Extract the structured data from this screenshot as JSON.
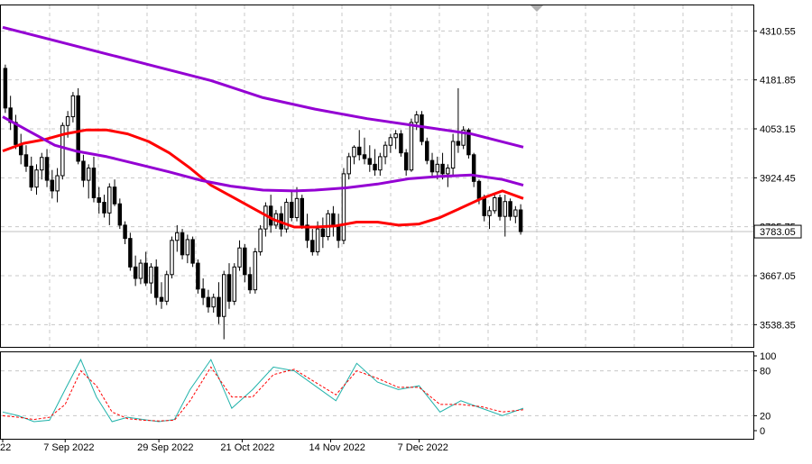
{
  "chart_data": [
    {
      "type": "candlestick",
      "panel": "price",
      "ylim": [
        3480,
        4380
      ],
      "y_ticks": [
        "4310.55",
        "4181.85",
        "4053.15",
        "3924.45",
        "3795.75",
        "3667.05",
        "3538.35"
      ],
      "current_price_label": "3783.05",
      "current_price": 3783.05,
      "grid": "dashed",
      "up_color": "#ffffff",
      "down_color": "#000000",
      "candles": [
        [
          4212,
          4222,
          4095,
          4108
        ],
        [
          4108,
          4140,
          4050,
          4070
        ],
        [
          4070,
          4090,
          4000,
          4012
        ],
        [
          4012,
          4040,
          3960,
          3985
        ],
        [
          3985,
          4010,
          3940,
          3955
        ],
        [
          3955,
          3980,
          3890,
          3900
        ],
        [
          3900,
          3960,
          3880,
          3945
        ],
        [
          3945,
          3990,
          3920,
          3978
        ],
        [
          3978,
          4000,
          3900,
          3918
        ],
        [
          3918,
          3945,
          3870,
          3890
        ],
        [
          3890,
          3950,
          3860,
          3930
        ],
        [
          3930,
          4070,
          3920,
          4062
        ],
        [
          4062,
          4100,
          4030,
          4085
        ],
        [
          4085,
          4150,
          4070,
          4140
        ],
        [
          4140,
          4160,
          3960,
          3968
        ],
        [
          3968,
          3985,
          3900,
          3918
        ],
        [
          3918,
          3960,
          3870,
          3950
        ],
        [
          3950,
          3980,
          3860,
          3872
        ],
        [
          3872,
          3900,
          3830,
          3860
        ],
        [
          3860,
          3880,
          3820,
          3832
        ],
        [
          3832,
          3910,
          3800,
          3900
        ],
        [
          3900,
          3920,
          3850,
          3856
        ],
        [
          3856,
          3870,
          3790,
          3800
        ],
        [
          3800,
          3810,
          3750,
          3765
        ],
        [
          3765,
          3780,
          3680,
          3690
        ],
        [
          3690,
          3720,
          3640,
          3660
        ],
        [
          3660,
          3710,
          3645,
          3700
        ],
        [
          3700,
          3730,
          3640,
          3648
        ],
        [
          3648,
          3700,
          3620,
          3690
        ],
        [
          3690,
          3710,
          3590,
          3610
        ],
        [
          3610,
          3650,
          3580,
          3600
        ],
        [
          3600,
          3680,
          3590,
          3670
        ],
        [
          3670,
          3770,
          3660,
          3760
        ],
        [
          3760,
          3800,
          3730,
          3780
        ],
        [
          3780,
          3790,
          3710,
          3722
        ],
        [
          3722,
          3775,
          3700,
          3762
        ],
        [
          3762,
          3770,
          3690,
          3700
        ],
        [
          3700,
          3710,
          3620,
          3632
        ],
        [
          3632,
          3660,
          3590,
          3610
        ],
        [
          3610,
          3630,
          3570,
          3585
        ],
        [
          3585,
          3620,
          3570,
          3610
        ],
        [
          3610,
          3650,
          3540,
          3560
        ],
        [
          3560,
          3680,
          3500,
          3670
        ],
        [
          3670,
          3700,
          3580,
          3600
        ],
        [
          3600,
          3700,
          3590,
          3690
        ],
        [
          3690,
          3760,
          3680,
          3740
        ],
        [
          3740,
          3750,
          3650,
          3670
        ],
        [
          3670,
          3690,
          3620,
          3630
        ],
        [
          3630,
          3740,
          3620,
          3730
        ],
        [
          3730,
          3800,
          3720,
          3790
        ],
        [
          3790,
          3860,
          3770,
          3850
        ],
        [
          3850,
          3880,
          3780,
          3800
        ],
        [
          3800,
          3840,
          3790,
          3830
        ],
        [
          3830,
          3850,
          3770,
          3790
        ],
        [
          3790,
          3870,
          3780,
          3860
        ],
        [
          3860,
          3890,
          3810,
          3820
        ],
        [
          3820,
          3900,
          3810,
          3870
        ],
        [
          3870,
          3880,
          3790,
          3800
        ],
        [
          3800,
          3830,
          3740,
          3760
        ],
        [
          3760,
          3790,
          3720,
          3730
        ],
        [
          3730,
          3810,
          3720,
          3790
        ],
        [
          3790,
          3820,
          3740,
          3770
        ],
        [
          3770,
          3840,
          3760,
          3830
        ],
        [
          3830,
          3850,
          3770,
          3800
        ],
        [
          3800,
          3830,
          3740,
          3760
        ],
        [
          3760,
          3950,
          3750,
          3935
        ],
        [
          3935,
          3990,
          3920,
          3980
        ],
        [
          3980,
          4010,
          3960,
          4005
        ],
        [
          4005,
          4050,
          3970,
          3985
        ],
        [
          3985,
          4030,
          3960,
          3975
        ],
        [
          3975,
          4010,
          3940,
          3960
        ],
        [
          3960,
          4000,
          3930,
          3945
        ],
        [
          3945,
          3990,
          3930,
          3980
        ],
        [
          3980,
          4020,
          3960,
          4010
        ],
        [
          4010,
          4040,
          3990,
          4030
        ],
        [
          4030,
          4050,
          4000,
          4040
        ],
        [
          4040,
          4050,
          3980,
          3990
        ],
        [
          3990,
          4000,
          3930,
          3945
        ],
        [
          3945,
          4080,
          3940,
          4070
        ],
        [
          4070,
          4100,
          4050,
          4090
        ],
        [
          4090,
          4100,
          4010,
          4020
        ],
        [
          4020,
          4030,
          3960,
          3970
        ],
        [
          3970,
          3990,
          3930,
          3940
        ],
        [
          3940,
          3980,
          3920,
          3960
        ],
        [
          3960,
          3990,
          3920,
          3935
        ],
        [
          3935,
          3960,
          3900,
          3950
        ],
        [
          3950,
          4040,
          3930,
          4020
        ],
        [
          4020,
          4160,
          3990,
          4010
        ],
        [
          4010,
          4060,
          4000,
          4050
        ],
        [
          4050,
          4055,
          3975,
          3985
        ],
        [
          3985,
          3990,
          3900,
          3915
        ],
        [
          3915,
          3920,
          3855,
          3870
        ],
        [
          3870,
          3880,
          3810,
          3825
        ],
        [
          3825,
          3850,
          3790,
          3838
        ],
        [
          3838,
          3880,
          3830,
          3872
        ],
        [
          3872,
          3880,
          3812,
          3823
        ],
        [
          3823,
          3880,
          3770,
          3862
        ],
        [
          3862,
          3870,
          3812,
          3823
        ],
        [
          3823,
          3850,
          3805,
          3840
        ],
        [
          3840,
          3855,
          3775,
          3783
        ]
      ],
      "series": [
        {
          "name": "",
          "color": "#ff0000",
          "width": 3,
          "values": [
            [
              0,
              3995
            ],
            [
              4,
              4015
            ],
            [
              8,
              4025
            ],
            [
              12,
              4040
            ],
            [
              16,
              4050
            ],
            [
              20,
              4050
            ],
            [
              24,
              4040
            ],
            [
              28,
              4020
            ],
            [
              32,
              3990
            ],
            [
              36,
              3950
            ],
            [
              40,
              3905
            ],
            [
              44,
              3875
            ],
            [
              48,
              3845
            ],
            [
              52,
              3815
            ],
            [
              56,
              3795
            ],
            [
              60,
              3795
            ],
            [
              64,
              3798
            ],
            [
              68,
              3808
            ],
            [
              72,
              3808
            ],
            [
              76,
              3800
            ],
            [
              80,
              3803
            ],
            [
              84,
              3820
            ],
            [
              88,
              3845
            ],
            [
              92,
              3870
            ],
            [
              96,
              3890
            ],
            [
              100,
              3870
            ]
          ]
        },
        {
          "name": "",
          "color": "#9400d3",
          "width": 3,
          "values": [
            [
              0,
              4085
            ],
            [
              6,
              4040
            ],
            [
              10,
              4010
            ],
            [
              14,
              3995
            ],
            [
              20,
              3980
            ],
            [
              26,
              3960
            ],
            [
              32,
              3940
            ],
            [
              38,
              3918
            ],
            [
              44,
              3902
            ],
            [
              50,
              3892
            ],
            [
              56,
              3890
            ],
            [
              60,
              3892
            ],
            [
              66,
              3898
            ],
            [
              72,
              3908
            ],
            [
              78,
              3922
            ],
            [
              84,
              3928
            ],
            [
              90,
              3932
            ],
            [
              96,
              3920
            ],
            [
              100,
              3905
            ]
          ]
        },
        {
          "name": "",
          "color": "#9400d3",
          "width": 3,
          "values": [
            [
              0,
              4320
            ],
            [
              10,
              4285
            ],
            [
              20,
              4250
            ],
            [
              30,
              4215
            ],
            [
              40,
              4180
            ],
            [
              50,
              4135
            ],
            [
              60,
              4105
            ],
            [
              70,
              4080
            ],
            [
              80,
              4060
            ],
            [
              90,
              4040
            ],
            [
              100,
              4005
            ]
          ]
        }
      ]
    },
    {
      "type": "line",
      "panel": "stochastic",
      "ylim": [
        0,
        100
      ],
      "y_ticks": [
        "100",
        "80",
        "20",
        "0"
      ],
      "levels": [
        80,
        20
      ],
      "series": [
        {
          "name": "",
          "color": "#20b2aa",
          "style": "solid",
          "values": [
            [
              0,
              25
            ],
            [
              3,
              20
            ],
            [
              6,
              12
            ],
            [
              9,
              14
            ],
            [
              12,
              55
            ],
            [
              15,
              95
            ],
            [
              18,
              45
            ],
            [
              21,
              12
            ],
            [
              24,
              18
            ],
            [
              27,
              15
            ],
            [
              30,
              12
            ],
            [
              33,
              15
            ],
            [
              36,
              55
            ],
            [
              40,
              95
            ],
            [
              44,
              30
            ],
            [
              48,
              55
            ],
            [
              52,
              85
            ],
            [
              56,
              80
            ],
            [
              60,
              60
            ],
            [
              64,
              40
            ],
            [
              68,
              90
            ],
            [
              72,
              65
            ],
            [
              76,
              55
            ],
            [
              80,
              60
            ],
            [
              84,
              25
            ],
            [
              88,
              40
            ],
            [
              92,
              30
            ],
            [
              96,
              20
            ],
            [
              100,
              30
            ]
          ]
        },
        {
          "name": "",
          "color": "#ff0000",
          "style": "dashed",
          "values": [
            [
              0,
              20
            ],
            [
              3,
              18
            ],
            [
              6,
              15
            ],
            [
              9,
              18
            ],
            [
              12,
              35
            ],
            [
              15,
              80
            ],
            [
              18,
              60
            ],
            [
              21,
              25
            ],
            [
              24,
              16
            ],
            [
              27,
              14
            ],
            [
              30,
              13
            ],
            [
              33,
              14
            ],
            [
              36,
              40
            ],
            [
              40,
              85
            ],
            [
              44,
              45
            ],
            [
              48,
              45
            ],
            [
              52,
              75
            ],
            [
              56,
              82
            ],
            [
              60,
              65
            ],
            [
              64,
              48
            ],
            [
              68,
              80
            ],
            [
              72,
              70
            ],
            [
              76,
              58
            ],
            [
              80,
              58
            ],
            [
              84,
              35
            ],
            [
              88,
              35
            ],
            [
              92,
              32
            ],
            [
              96,
              25
            ],
            [
              100,
              28
            ]
          ]
        }
      ]
    }
  ],
  "x_axis": {
    "labels": [
      {
        "text": "22",
        "pos": 0
      },
      {
        "text": "7 Sep 2022",
        "pos": 12
      },
      {
        "text": "29 Sep 2022",
        "pos": 30
      },
      {
        "text": "21 Oct 2022",
        "pos": 46
      },
      {
        "text": "14 Nov 2022",
        "pos": 63
      },
      {
        "text": "7 Dec 2022",
        "pos": 80
      }
    ]
  },
  "colors": {
    "background": "#ffffff",
    "grid": "#c8c8c8",
    "axis": "#000000",
    "current_line": "#c0c0c0"
  }
}
